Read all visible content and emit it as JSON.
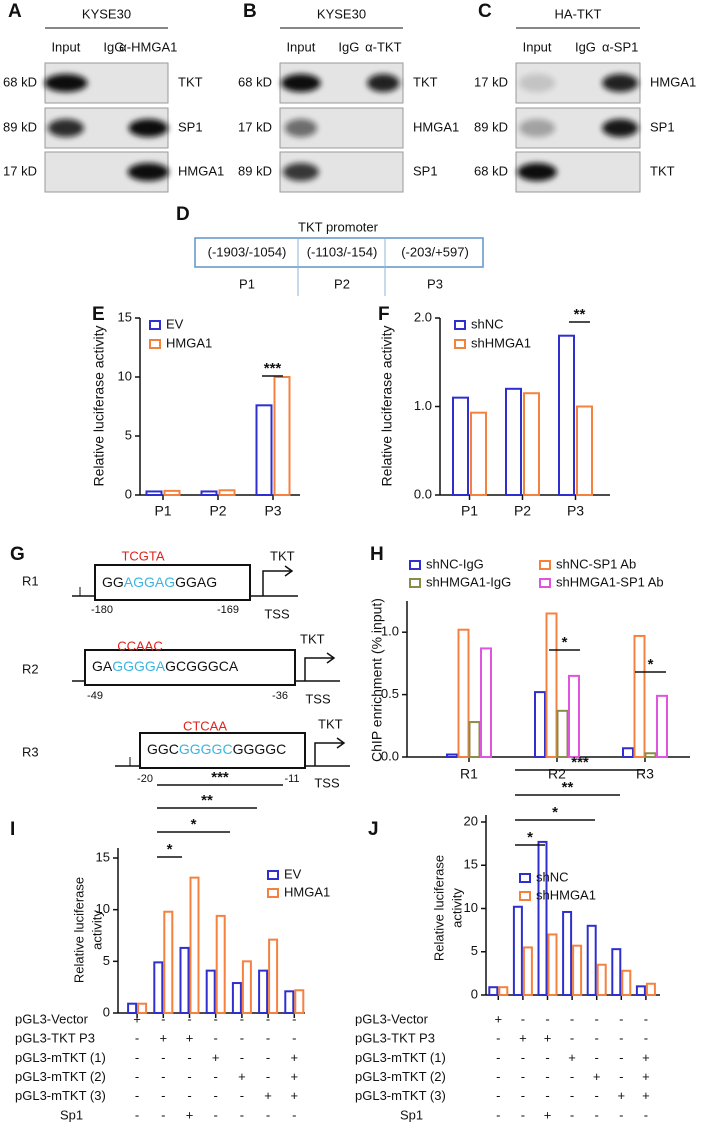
{
  "blots": [
    {
      "panel": "A",
      "title": "KYSE30",
      "lanes": [
        "Input",
        "IgG",
        "α-HMGA1"
      ],
      "rows": [
        {
          "size": "68 kD",
          "protein": "TKT"
        },
        {
          "size": "89 kD",
          "protein": "SP1"
        },
        {
          "size": "17 kD",
          "protein": "HMGA1"
        }
      ]
    },
    {
      "panel": "B",
      "title": "KYSE30",
      "lanes": [
        "Input",
        "IgG",
        "α-TKT"
      ],
      "rows": [
        {
          "size": "68 kD",
          "protein": "TKT"
        },
        {
          "size": "17 kD",
          "protein": "HMGA1"
        },
        {
          "size": "89 kD",
          "protein": "SP1"
        }
      ]
    },
    {
      "panel": "C",
      "title": "HA-TKT",
      "lanes": [
        "Input",
        "IgG",
        "α-SP1"
      ],
      "rows": [
        {
          "size": "17 kD",
          "protein": "HMGA1"
        },
        {
          "size": "89 kD",
          "protein": "SP1"
        },
        {
          "size": "68 kD",
          "protein": "TKT"
        }
      ]
    }
  ],
  "promoter": {
    "panel": "D",
    "title": "TKT promoter",
    "segments": [
      {
        "range": "(-1903/-1054)",
        "label": "P1"
      },
      {
        "range": "(-1103/-154)",
        "label": "P2"
      },
      {
        "range": "(-203/+597)",
        "label": "P3"
      }
    ]
  },
  "motifs": {
    "panel": "G",
    "rows": [
      {
        "label": "R1",
        "mutation": "TCGTA",
        "sequence": [
          "GG",
          "AGGAG",
          "GGAG"
        ],
        "start": "-180",
        "end": "-169",
        "gene": "TKT",
        "site": "TSS"
      },
      {
        "label": "R2",
        "mutation": "CCAAC",
        "sequence": [
          "GA",
          "GGGGA",
          "GCGGGCA"
        ],
        "start": "-49",
        "end": "-36",
        "gene": "TKT",
        "site": "TSS"
      },
      {
        "label": "R3",
        "mutation": "CTCAA",
        "sequence": [
          "GGC",
          "GGGGC",
          "GGGGC"
        ],
        "start": "-20",
        "end": "-11",
        "gene": "TKT",
        "site": "TSS"
      }
    ]
  },
  "chart_data": [
    {
      "panel": "E",
      "type": "bar",
      "ylabel": "Relative luciferase activity",
      "categories": [
        "P1",
        "P2",
        "P3"
      ],
      "series": [
        {
          "name": "EV",
          "color": "#2f2fd0",
          "values": [
            0.3,
            0.3,
            7.6
          ]
        },
        {
          "name": "HMGA1",
          "color": "#f5813f",
          "values": [
            0.35,
            0.4,
            10
          ]
        }
      ],
      "ylim": [
        0,
        15
      ],
      "yticks": [
        0,
        5,
        10,
        15
      ],
      "annotations": [
        "***"
      ]
    },
    {
      "panel": "F",
      "type": "bar",
      "ylabel": "Relative luciferase activity",
      "categories": [
        "P1",
        "P2",
        "P3"
      ],
      "series": [
        {
          "name": "shNC",
          "color": "#2f2fd0",
          "values": [
            1.1,
            1.2,
            1.8
          ]
        },
        {
          "name": "shHMGA1",
          "color": "#f5813f",
          "values": [
            0.93,
            1.15,
            1.0
          ]
        }
      ],
      "ylim": [
        0,
        2
      ],
      "yticks": [
        {
          "value": 0,
          "label": "0.0"
        },
        {
          "value": 1,
          "label": "1.0"
        },
        {
          "value": 2,
          "label": "2.0"
        }
      ],
      "annotations": [
        "**"
      ]
    },
    {
      "panel": "H",
      "type": "bar",
      "ylabel": "ChIP enrichment (% input)",
      "categories": [
        "R1",
        "R2",
        "R3"
      ],
      "series": [
        {
          "name": "shNC-IgG",
          "color": "#2f2fd0",
          "values": [
            0.02,
            0.52,
            0.07
          ]
        },
        {
          "name": "shNC-SP1 Ab",
          "color": "#f5813f",
          "values": [
            1.02,
            1.15,
            0.97
          ]
        },
        {
          "name": "shHMGA1-IgG",
          "color": "#8b8b4a",
          "values": [
            0.28,
            0.37,
            0.03
          ]
        },
        {
          "name": "shHMGA1-SP1 Ab",
          "color": "#e055e0",
          "values": [
            0.87,
            0.65,
            0.49
          ]
        }
      ],
      "ylim": [
        0,
        1.25
      ],
      "yticks": [
        {
          "value": 0,
          "label": "0.0"
        },
        {
          "value": 0.5,
          "label": "0.5"
        },
        {
          "value": 1,
          "label": "1.0"
        }
      ],
      "annotations": [
        "*",
        "*"
      ]
    },
    {
      "panel": "I",
      "type": "bar",
      "ylabel": [
        "Relative luciferase",
        "activity"
      ],
      "categories": [
        null,
        null,
        null,
        null,
        null,
        null,
        null
      ],
      "series": [
        {
          "name": "EV",
          "color": "#2f2fd0",
          "values": [
            0.9,
            4.9,
            6.3,
            4.1,
            2.9,
            4.1,
            2.1
          ]
        },
        {
          "name": "HMGA1",
          "color": "#f5813f",
          "values": [
            0.9,
            9.8,
            13.1,
            9.4,
            5.0,
            7.1,
            2.2
          ]
        }
      ],
      "ylim": [
        0,
        15
      ],
      "yticks": [
        0,
        5,
        10,
        15
      ],
      "annotations": [
        "*",
        "*",
        "**",
        "***"
      ],
      "conditions": [
        {
          "label": "pGL3-Vector",
          "signs": [
            "+",
            "-",
            "-",
            "-",
            "-",
            "-",
            "-"
          ]
        },
        {
          "label": "pGL3-TKT P3",
          "signs": [
            "-",
            "+",
            "+",
            "-",
            "-",
            "-",
            "-"
          ]
        },
        {
          "label": "pGL3-mTKT (1)",
          "signs": [
            "-",
            "-",
            "-",
            "+",
            "-",
            "-",
            "+"
          ]
        },
        {
          "label": "pGL3-mTKT (2)",
          "signs": [
            "-",
            "-",
            "-",
            "-",
            "+",
            "-",
            "+"
          ]
        },
        {
          "label": "pGL3-mTKT (3)",
          "signs": [
            "-",
            "-",
            "-",
            "-",
            "-",
            "+",
            "+"
          ]
        },
        {
          "label": "Sp1",
          "signs": [
            "-",
            "-",
            "+",
            "-",
            "-",
            "-",
            "-"
          ]
        }
      ]
    },
    {
      "panel": "J",
      "type": "bar",
      "ylabel": [
        "Relative luciferase",
        "activity"
      ],
      "categories": [
        null,
        null,
        null,
        null,
        null,
        null,
        null
      ],
      "series": [
        {
          "name": "shNC",
          "color": "#2f2fd0",
          "values": [
            0.9,
            10.2,
            17.7,
            9.6,
            8.0,
            5.3,
            1.0
          ]
        },
        {
          "name": "shHMGA1",
          "color": "#f5813f",
          "values": [
            0.9,
            5.5,
            7.0,
            5.7,
            3.5,
            2.8,
            1.3
          ]
        }
      ],
      "ylim": [
        0,
        20
      ],
      "yticks": [
        0,
        5,
        10,
        15,
        20
      ],
      "annotations": [
        "*",
        "*",
        "**",
        "***"
      ],
      "conditions": [
        {
          "label": "pGL3-Vector",
          "signs": [
            "+",
            "-",
            "-",
            "-",
            "-",
            "-",
            "-"
          ]
        },
        {
          "label": "pGL3-TKT P3",
          "signs": [
            "-",
            "+",
            "+",
            "-",
            "-",
            "-",
            "-"
          ]
        },
        {
          "label": "pGL3-mTKT (1)",
          "signs": [
            "-",
            "-",
            "-",
            "+",
            "-",
            "-",
            "+"
          ]
        },
        {
          "label": "pGL3-mTKT (2)",
          "signs": [
            "-",
            "-",
            "-",
            "-",
            "+",
            "-",
            "+"
          ]
        },
        {
          "label": "pGL3-mTKT (3)",
          "signs": [
            "-",
            "-",
            "-",
            "-",
            "-",
            "+",
            "+"
          ]
        },
        {
          "label": "Sp1",
          "signs": [
            "-",
            "-",
            "+",
            "-",
            "-",
            "-",
            "-"
          ]
        }
      ]
    }
  ]
}
